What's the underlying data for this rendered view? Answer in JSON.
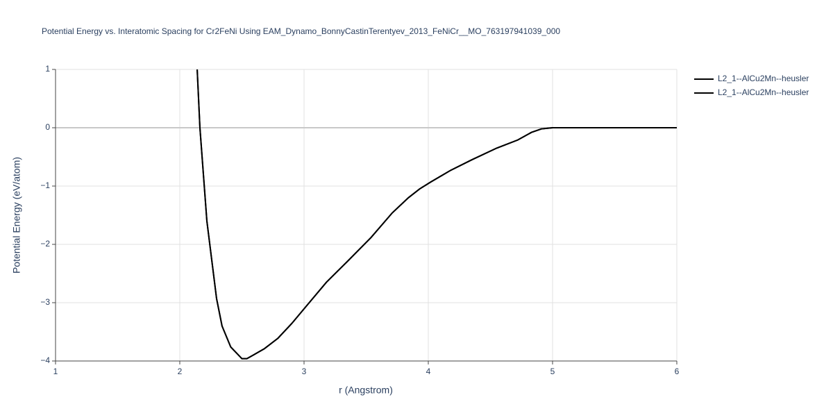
{
  "chart_data": {
    "type": "line",
    "title": "Potential Energy vs. Interatomic Spacing for Cr2FeNi Using EAM_Dynamo_BonnyCastinTerentyev_2013_FeNiCr__MO_763197941039_000",
    "x_label": "r (Angstrom)",
    "y_label": "Potential Energy (eV/atom)",
    "xlim": [
      1,
      6
    ],
    "xticks": [
      1,
      2,
      3,
      4,
      5,
      6
    ],
    "ylim": [
      -4,
      1
    ],
    "yticks": [
      {
        "value": -4,
        "label": "−4"
      },
      {
        "value": -3,
        "label": "−3"
      },
      {
        "value": -2,
        "label": "−2"
      },
      {
        "value": -1,
        "label": "−1"
      },
      0,
      1
    ],
    "grid": true,
    "series": [
      {
        "name": "L2_1--AlCu2Mn--heusler",
        "color": "#000000",
        "x": [
          2.14,
          2.162,
          2.218,
          2.296,
          2.34,
          2.41,
          2.5,
          2.54,
          2.59,
          2.68,
          2.79,
          2.9,
          3.01,
          3.18,
          3.35,
          3.54,
          3.71,
          3.84,
          3.93,
          4.02,
          4.18,
          4.35,
          4.55,
          4.72,
          4.83,
          4.91,
          5.0,
          5.13,
          6.0
        ],
        "values": [
          1,
          0,
          -1.6,
          -2.93,
          -3.4,
          -3.76,
          -3.96,
          -3.96,
          -3.9,
          -3.79,
          -3.61,
          -3.36,
          -3.08,
          -2.65,
          -2.29,
          -1.88,
          -1.46,
          -1.2,
          -1.05,
          -0.93,
          -0.73,
          -0.55,
          -0.35,
          -0.21,
          -0.08,
          -0.02,
          0,
          0,
          0
        ]
      },
      {
        "name": "L2_1--AlCu2Mn--heusler",
        "color": "#000000",
        "x": [
          2.14,
          2.162,
          2.218,
          2.296,
          2.34,
          2.41,
          2.5,
          2.54,
          2.59,
          2.68,
          2.79,
          2.9,
          3.01,
          3.18,
          3.35,
          3.54,
          3.71,
          3.84,
          3.93,
          4.02,
          4.18,
          4.35,
          4.55,
          4.72,
          4.83,
          4.91,
          5.0,
          5.13,
          6.0
        ],
        "values": [
          1,
          0,
          -1.6,
          -2.93,
          -3.4,
          -3.76,
          -3.96,
          -3.96,
          -3.9,
          -3.79,
          -3.61,
          -3.36,
          -3.08,
          -2.65,
          -2.29,
          -1.88,
          -1.46,
          -1.2,
          -1.05,
          -0.93,
          -0.73,
          -0.55,
          -0.35,
          -0.21,
          -0.08,
          -0.02,
          0,
          0,
          0
        ]
      }
    ]
  }
}
